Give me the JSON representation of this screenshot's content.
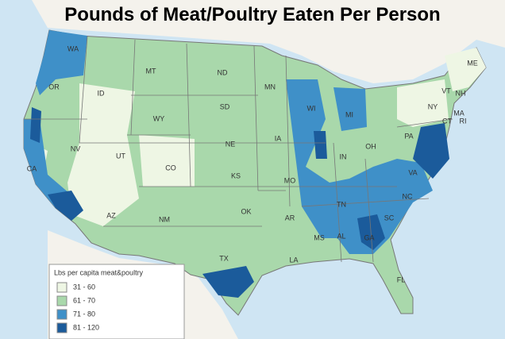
{
  "title": "Pounds of Meat/Poultry Eaten Per Person",
  "legend": {
    "title": "Lbs per capita meat&poultry",
    "items": [
      {
        "label": "31 - 60",
        "color": "#eef6e4"
      },
      {
        "label": "61 - 70",
        "color": "#a9d8ab"
      },
      {
        "label": "71 - 80",
        "color": "#3f90c8"
      },
      {
        "label": "81 - 120",
        "color": "#1b5b9b"
      }
    ]
  },
  "states": [
    "WA",
    "OR",
    "ID",
    "MT",
    "ND",
    "MN",
    "ME",
    "SD",
    "WI",
    "MI",
    "NY",
    "VT",
    "NH",
    "MA",
    "CT",
    "RI",
    "WY",
    "NE",
    "IA",
    "PA",
    "NV",
    "UT",
    "CO",
    "IN",
    "OH",
    "KS",
    "MO",
    "VA",
    "CA",
    "NC",
    "TN",
    "OK",
    "AR",
    "AZ",
    "NM",
    "SC",
    "MS",
    "AL",
    "GA",
    "TX",
    "LA",
    "FL"
  ]
}
